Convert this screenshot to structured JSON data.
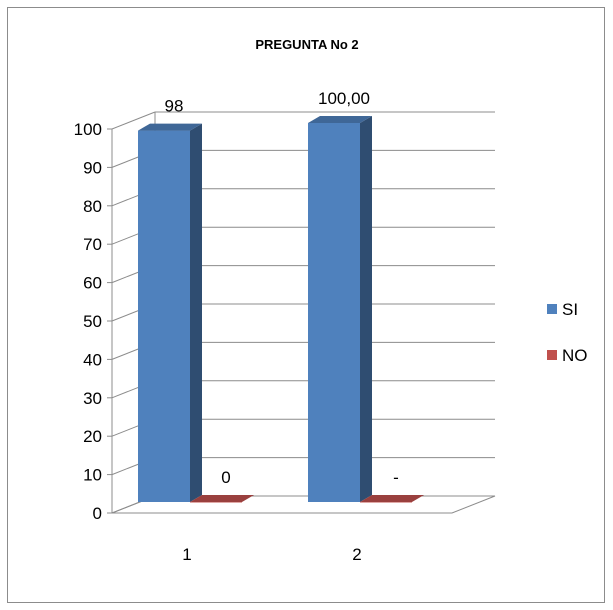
{
  "chart_data": {
    "type": "bar",
    "title": "PREGUNTA No 2",
    "categories": [
      "1",
      "2"
    ],
    "series": [
      {
        "name": "SI",
        "values": [
          98,
          100
        ],
        "labels": [
          "98",
          "100,00"
        ],
        "color": "#4f81bd"
      },
      {
        "name": "NO",
        "values": [
          0,
          0
        ],
        "labels": [
          "0",
          "-"
        ],
        "color": "#c0504d"
      }
    ],
    "yticks": [
      "0",
      "10",
      "20",
      "30",
      "40",
      "50",
      "60",
      "70",
      "80",
      "90",
      "100"
    ],
    "ylim": [
      0,
      100
    ],
    "grid": true,
    "legend": "right",
    "three_d": true
  }
}
